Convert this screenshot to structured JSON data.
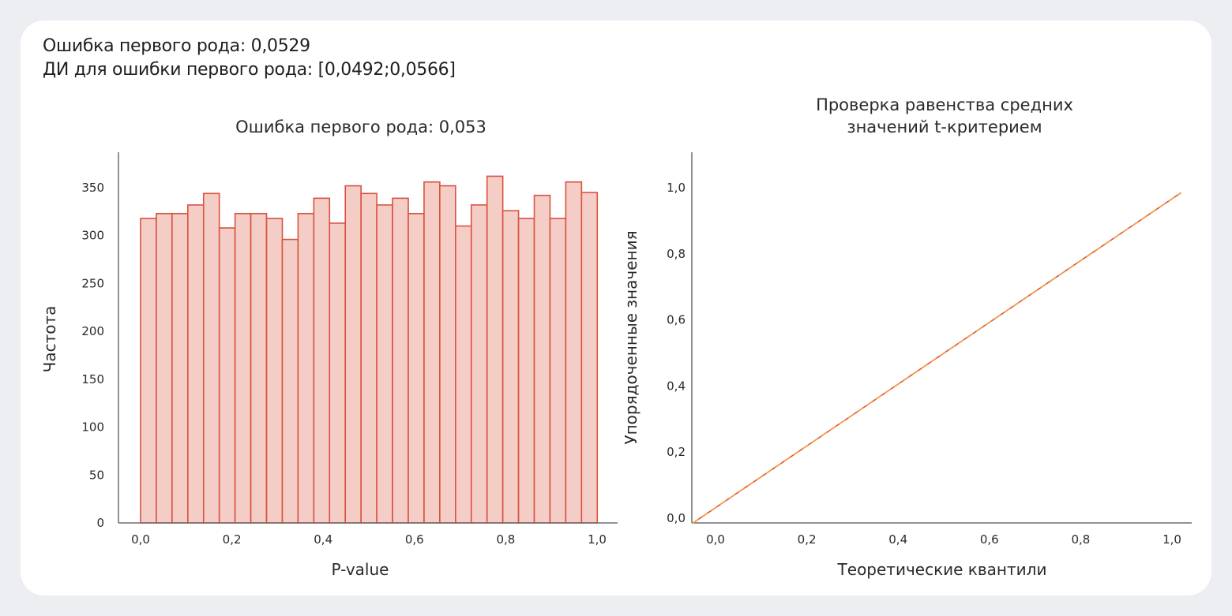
{
  "summary": {
    "line1": "Ошибка первого рода: 0,0529",
    "line2": "ДИ для ошибки первого рода: [0,0492;0,0566]"
  },
  "colors": {
    "bar_fill": "#f5cdc7",
    "bar_stroke": "#d9523f",
    "axis": "#6e6e6e",
    "line_red": "#d9523f",
    "line_orange": "#f0a14a"
  },
  "chart_data": [
    {
      "type": "bar",
      "title": "Ошибка первого рода: 0,053",
      "xlabel": "P-value",
      "ylabel": "Частота",
      "xlim": [
        -0.05,
        1.05
      ],
      "ylim": [
        0,
        380
      ],
      "bin_width": 0.0345,
      "bin_start": 0.0,
      "xticks": [
        "0,0",
        "0,2",
        "0,4",
        "0,6",
        "0,8",
        "1,0"
      ],
      "xtick_values": [
        0,
        0.2,
        0.4,
        0.6,
        0.8,
        1.0
      ],
      "yticks": [
        "0",
        "50",
        "100",
        "150",
        "200",
        "250",
        "300",
        "350"
      ],
      "ytick_values": [
        0,
        50,
        100,
        150,
        200,
        250,
        300,
        350
      ],
      "values": [
        318,
        323,
        323,
        332,
        344,
        308,
        323,
        323,
        318,
        296,
        323,
        339,
        313,
        352,
        344,
        332,
        339,
        323,
        356,
        352,
        310,
        332,
        362,
        326,
        318,
        342,
        318,
        356,
        345
      ]
    },
    {
      "type": "line",
      "title_lines": [
        "Проверка равенства средних",
        "значений t-критерием"
      ],
      "xlabel": "Теоретические квантили",
      "ylabel": "Упорядоченные значения",
      "xlim": [
        -0.05,
        1.05
      ],
      "ylim": [
        -0.015,
        1.11
      ],
      "xticks": [
        "0,0",
        "0,2",
        "0,4",
        "0,6",
        "0,8",
        "1,0"
      ],
      "xtick_values": [
        0,
        0.2,
        0.4,
        0.6,
        0.8,
        1.0
      ],
      "yticks": [
        "0,0",
        "0,2",
        "0,4",
        "0,6",
        "0,8",
        "1,0"
      ],
      "ytick_values": [
        0,
        0.2,
        0.4,
        0.6,
        0.8,
        1.0
      ],
      "series": [
        {
          "x": [
            -0.05,
            1.02
          ],
          "y": [
            -0.015,
            0.985
          ],
          "style": "solid"
        },
        {
          "x": [
            -0.05,
            1.02
          ],
          "y": [
            -0.015,
            0.985
          ],
          "style": "dashed"
        }
      ]
    }
  ]
}
